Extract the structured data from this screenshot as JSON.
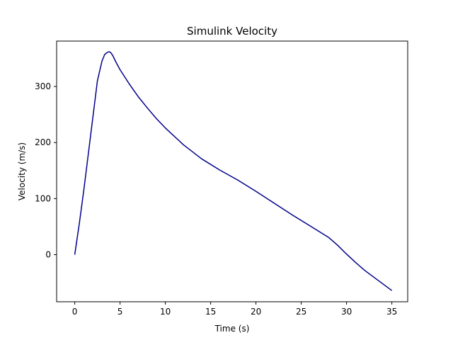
{
  "chart_data": {
    "type": "line",
    "title": "Simulink Velocity",
    "xlabel": "Time (s)",
    "ylabel": "Velocity (m/s)",
    "xlim": [
      -2,
      36.75
    ],
    "ylim": [
      -84,
      381
    ],
    "grid": false,
    "line_color": "#00008b",
    "xticks": [
      0,
      5,
      10,
      15,
      20,
      25,
      30,
      35
    ],
    "yticks": [
      0,
      100,
      200,
      300
    ],
    "series": [
      {
        "x": [
          0,
          0.5,
          1,
          1.5,
          2,
          2.5,
          3,
          3.3,
          3.6,
          3.8,
          4.0,
          4.2,
          4.5,
          5,
          6,
          7,
          8,
          9,
          10,
          12,
          14,
          16,
          18,
          20,
          22,
          24,
          26,
          28,
          29,
          30,
          31,
          32,
          33,
          34,
          35
        ],
        "y": [
          0,
          55,
          115,
          180,
          245,
          310,
          345,
          357,
          361,
          362,
          360,
          355,
          345,
          330,
          305,
          282,
          262,
          243,
          226,
          196,
          171,
          151,
          133,
          113,
          92,
          71,
          51,
          31,
          17,
          1,
          -14,
          -28,
          -40,
          -52,
          -64
        ]
      }
    ]
  }
}
